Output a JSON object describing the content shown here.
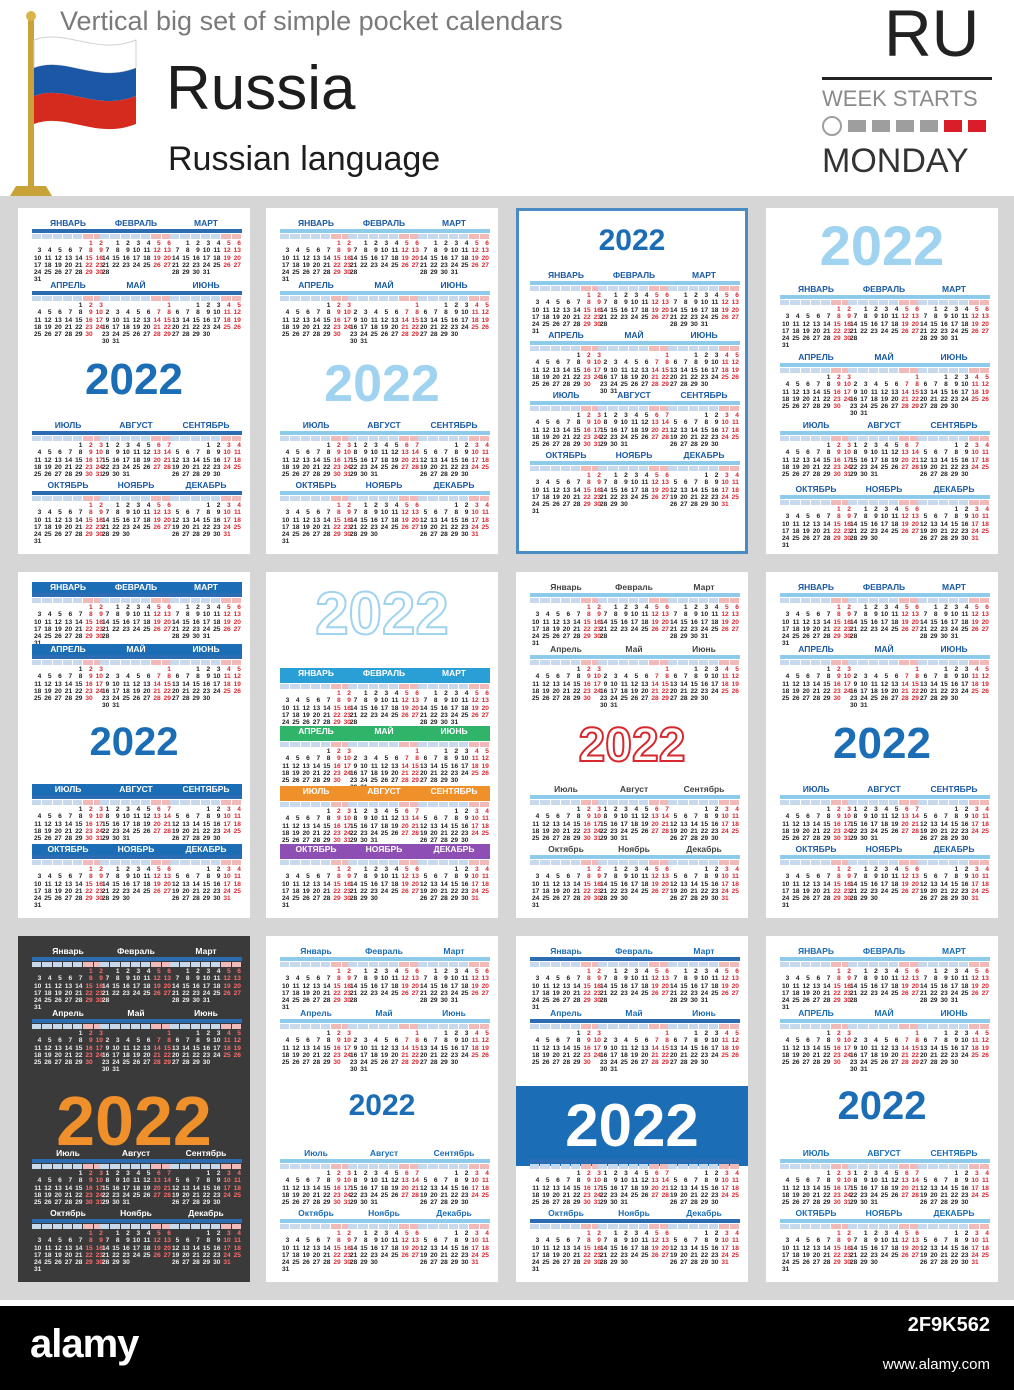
{
  "header": {
    "subtitle": "Vertical big set of simple pocket calendars",
    "country": "Russia",
    "language": "Russian language",
    "code": "RU",
    "week_starts": "WEEK STARTS",
    "monday": "MONDAY"
  },
  "year": "2022",
  "months_caps": [
    "ЯНВАРЬ",
    "ФЕВРАЛЬ",
    "МАРТ",
    "АПРЕЛЬ",
    "МАЙ",
    "ИЮНЬ",
    "ИЮЛЬ",
    "АВГУСТ",
    "СЕНТЯБРЬ",
    "ОКТЯБРЬ",
    "НОЯБРЬ",
    "ДЕКАБРЬ"
  ],
  "months_title": [
    "Январь",
    "Февраль",
    "Март",
    "Апрель",
    "Май",
    "Июнь",
    "Июль",
    "Август",
    "Сентябрь",
    "Октябрь",
    "Ноябрь",
    "Декабрь"
  ],
  "colors": {
    "blue": "#1b6db5",
    "light_blue": "#9fd3ef",
    "red": "#d7282f",
    "orange": "#f0902a",
    "dark": "#3a3a3a"
  },
  "footer": {
    "logo": "alamy",
    "image_id": "2F9K562",
    "url": "www.alamy.com"
  }
}
